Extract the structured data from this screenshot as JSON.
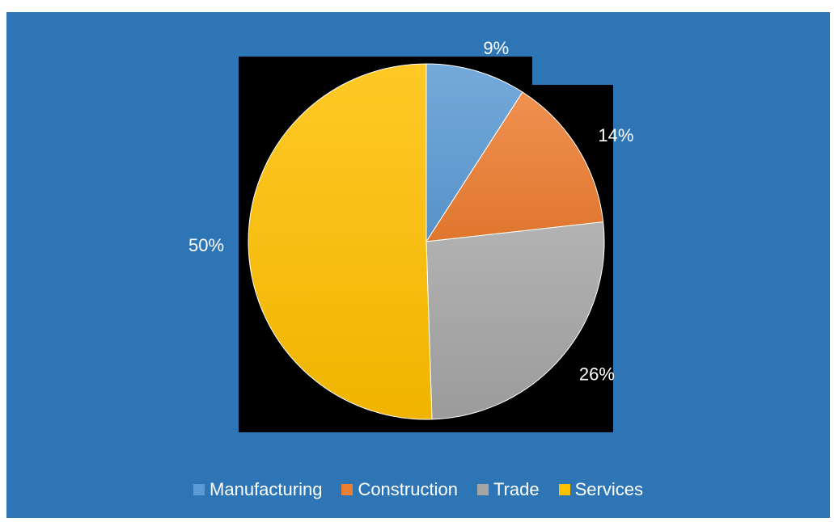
{
  "chart_data": {
    "type": "pie",
    "title": "",
    "categories": [
      "Manufacturing",
      "Construction",
      "Trade",
      "Services"
    ],
    "values": [
      9,
      14,
      26,
      50
    ],
    "labels": [
      "9%",
      "14%",
      "26%",
      "50%"
    ],
    "colors": [
      "#5B9BD5",
      "#ED7D31",
      "#A5A5A5",
      "#FFC000"
    ],
    "background_color": "#2E75B6",
    "plot_background_color": "#000000",
    "legend_position": "bottom",
    "start_angle": "12 o'clock, clockwise"
  }
}
